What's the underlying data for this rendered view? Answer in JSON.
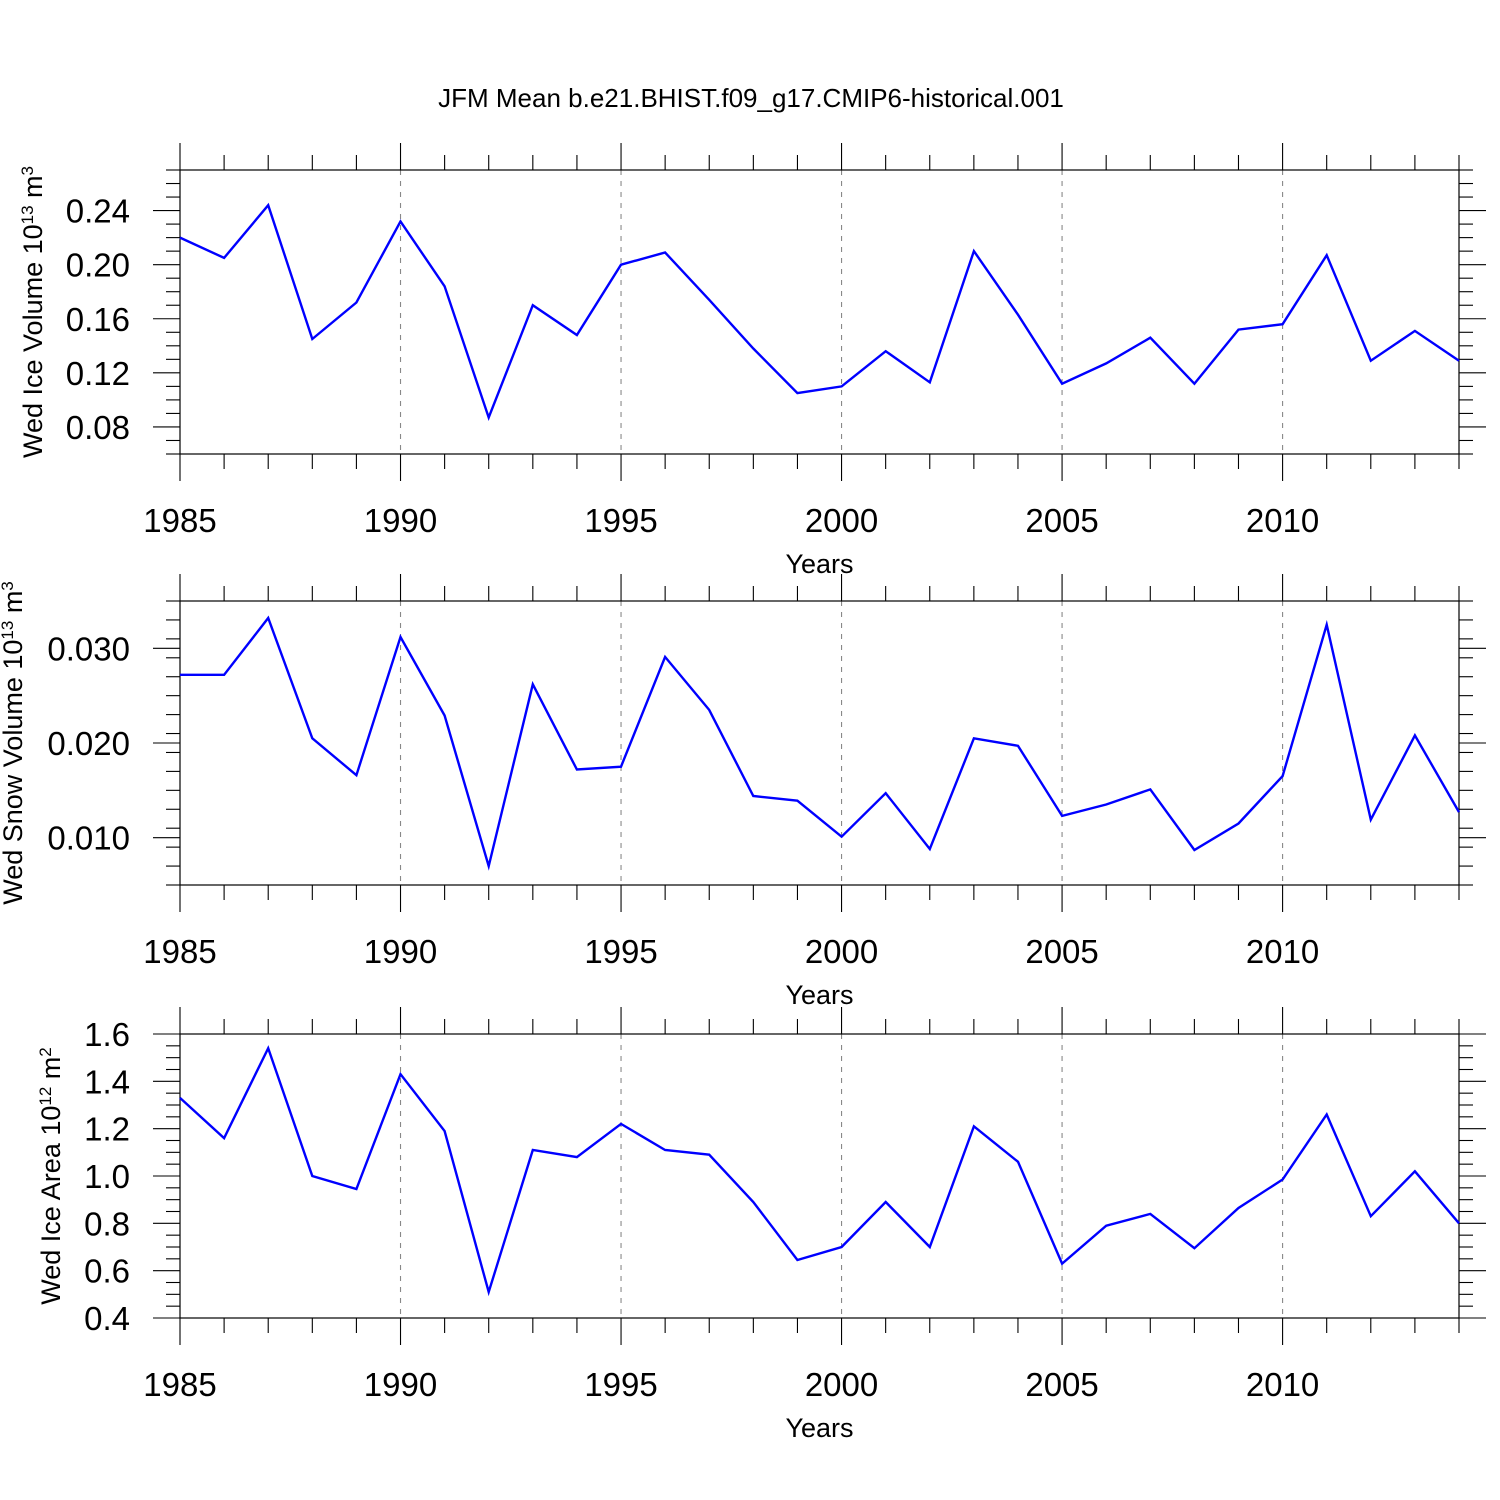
{
  "figure_title": "JFM Mean b.e21.BHIST.f09_g17.CMIP6-historical.001",
  "colors": {
    "series": "#0000ff",
    "axes": "#000000",
    "grid": "#888888"
  },
  "chart_data": [
    {
      "type": "line",
      "ylabel": "Wed Ice Volume 10",
      "ylabel_exp": "13",
      "ylabel_unit": " m",
      "ylabel_unit_exp": "3",
      "xlabel": "Years",
      "xlim": [
        1985,
        2014
      ],
      "ylim": [
        0.06,
        0.27
      ],
      "x_ticks": [
        1985,
        1990,
        1995,
        2000,
        2005,
        2010
      ],
      "x_tick_labels": [
        "1985",
        "1990",
        "1995",
        "2000",
        "2005",
        "2010"
      ],
      "y_ticks": [
        0.08,
        0.12,
        0.16,
        0.2,
        0.24
      ],
      "y_tick_labels": [
        "0.08",
        "0.12",
        "0.16",
        "0.20",
        "0.24"
      ],
      "y_minor_step": 0.01,
      "x": [
        1985,
        1986,
        1987,
        1988,
        1989,
        1990,
        1991,
        1992,
        1993,
        1994,
        1995,
        1996,
        1997,
        1998,
        1999,
        2000,
        2001,
        2002,
        2003,
        2004,
        2005,
        2006,
        2007,
        2008,
        2009,
        2010,
        2011,
        2012,
        2013,
        2014
      ],
      "values": [
        0.22,
        0.205,
        0.244,
        0.145,
        0.172,
        0.232,
        0.184,
        0.087,
        0.17,
        0.148,
        0.2,
        0.209,
        0.174,
        0.138,
        0.105,
        0.11,
        0.136,
        0.113,
        0.21,
        0.163,
        0.112,
        0.127,
        0.146,
        0.112,
        0.152,
        0.156,
        0.207,
        0.129,
        0.151,
        0.129
      ]
    },
    {
      "type": "line",
      "ylabel": "Wed Snow Volume 10",
      "ylabel_exp": "13",
      "ylabel_unit": " m",
      "ylabel_unit_exp": "3",
      "xlabel": "Years",
      "xlim": [
        1985,
        2014
      ],
      "ylim": [
        0.005,
        0.035
      ],
      "x_ticks": [
        1985,
        1990,
        1995,
        2000,
        2005,
        2010
      ],
      "x_tick_labels": [
        "1985",
        "1990",
        "1995",
        "2000",
        "2005",
        "2010"
      ],
      "y_ticks": [
        0.01,
        0.02,
        0.03
      ],
      "y_tick_labels": [
        "0.010",
        "0.020",
        "0.030"
      ],
      "y_minor_step": 0.002,
      "x": [
        1985,
        1986,
        1987,
        1988,
        1989,
        1990,
        1991,
        1992,
        1993,
        1994,
        1995,
        1996,
        1997,
        1998,
        1999,
        2000,
        2001,
        2002,
        2003,
        2004,
        2005,
        2006,
        2007,
        2008,
        2009,
        2010,
        2011,
        2012,
        2013,
        2014
      ],
      "values": [
        0.0272,
        0.0272,
        0.0332,
        0.0205,
        0.0166,
        0.0312,
        0.0229,
        0.007,
        0.0262,
        0.0172,
        0.0175,
        0.0291,
        0.0235,
        0.0144,
        0.0139,
        0.0101,
        0.0147,
        0.0088,
        0.0205,
        0.0197,
        0.0123,
        0.0135,
        0.0151,
        0.0087,
        0.0115,
        0.0165,
        0.0325,
        0.0119,
        0.0208,
        0.0127
      ]
    },
    {
      "type": "line",
      "ylabel": "Wed Ice Area 10",
      "ylabel_exp": "12",
      "ylabel_unit": " m",
      "ylabel_unit_exp": "2",
      "xlabel": "Years",
      "xlim": [
        1985,
        2014
      ],
      "ylim": [
        0.4,
        1.6
      ],
      "x_ticks": [
        1985,
        1990,
        1995,
        2000,
        2005,
        2010
      ],
      "x_tick_labels": [
        "1985",
        "1990",
        "1995",
        "2000",
        "2005",
        "2010"
      ],
      "y_ticks": [
        0.4,
        0.6,
        0.8,
        1.0,
        1.2,
        1.4,
        1.6
      ],
      "y_tick_labels": [
        "0.4",
        "0.6",
        "0.8",
        "1.0",
        "1.2",
        "1.4",
        "1.6"
      ],
      "y_minor_step": 0.05,
      "x": [
        1985,
        1986,
        1987,
        1988,
        1989,
        1990,
        1991,
        1992,
        1993,
        1994,
        1995,
        1996,
        1997,
        1998,
        1999,
        2000,
        2001,
        2002,
        2003,
        2004,
        2005,
        2006,
        2007,
        2008,
        2009,
        2010,
        2011,
        2012,
        2013,
        2014
      ],
      "values": [
        1.33,
        1.16,
        1.54,
        1.0,
        0.945,
        1.43,
        1.19,
        0.51,
        1.11,
        1.08,
        1.22,
        1.11,
        1.09,
        0.89,
        0.645,
        0.7,
        0.89,
        0.7,
        1.21,
        1.06,
        0.63,
        0.79,
        0.84,
        0.695,
        0.865,
        0.985,
        1.26,
        0.83,
        1.02,
        0.8
      ]
    }
  ]
}
